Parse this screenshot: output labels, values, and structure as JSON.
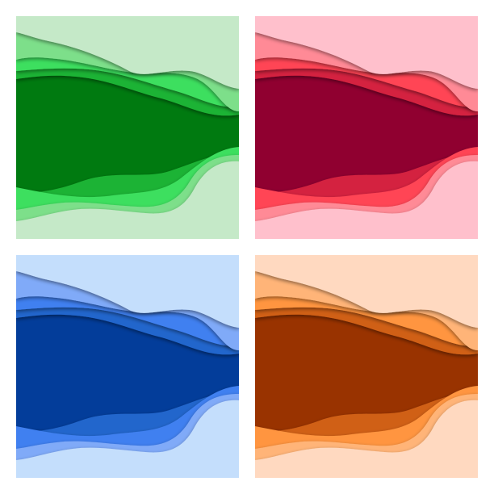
{
  "panels": [
    {
      "theme": "green",
      "colors": {
        "background": "#c5e9c8",
        "light": "#7ddf8a",
        "bright": "#3ddf5e",
        "mid": "#1fb334",
        "dark": "#007a10"
      }
    },
    {
      "theme": "red",
      "colors": {
        "background": "#ffc0cc",
        "light": "#ff8a96",
        "bright": "#ff4455",
        "mid": "#d42040",
        "dark": "#900030"
      }
    },
    {
      "theme": "blue",
      "colors": {
        "background": "#c4defc",
        "light": "#80aaf8",
        "bright": "#4080f0",
        "mid": "#2266cc",
        "dark": "#033d9a"
      }
    },
    {
      "theme": "orange",
      "colors": {
        "background": "#ffd9c0",
        "light": "#ffb478",
        "bright": "#ff9540",
        "mid": "#d06018",
        "dark": "#993300"
      }
    }
  ]
}
